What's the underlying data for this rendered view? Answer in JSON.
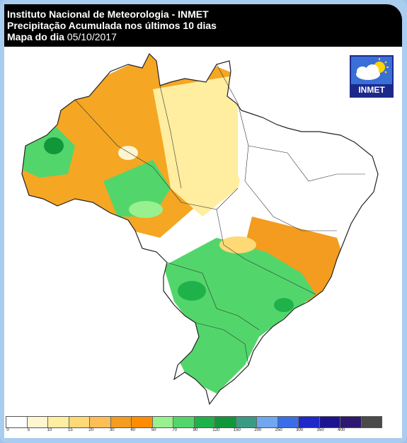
{
  "header": {
    "line1": "Instituto Nacional de Meteorologia - INMET",
    "line2": "Precipitação Acumulada nos últimos 10 dias",
    "date_label": "Mapa do dia",
    "date_value": "05/10/2017"
  },
  "logo": {
    "text": "INMET",
    "icon": "cloud-sun-icon"
  },
  "legend": {
    "labels": [
      "0",
      "5",
      "10",
      "15",
      "20",
      "30",
      "40",
      "50",
      "70",
      "90",
      "120",
      "150",
      "200",
      "250",
      "300",
      "350",
      "400"
    ],
    "colors": [
      "#ffffff",
      "#fff5cf",
      "#ffeda0",
      "#fed976",
      "#fdbf55",
      "#f39c1f",
      "#ff8c00",
      "#98f08f",
      "#52d66b",
      "#1fb24a",
      "#11973a",
      "#3a9b84",
      "#6fa7f0",
      "#3a6ee8",
      "#1f28c8",
      "#1a1490",
      "#2e1870",
      "#4a4a4a"
    ]
  },
  "map_colors": {
    "dry": "#ffffff",
    "light_yellow": "#fff5cf",
    "yellow": "#ffeda0",
    "gold": "#fed976",
    "orange": "#f5a623",
    "dark_orange": "#f39c1f",
    "light_green": "#98f08f",
    "green": "#52d66b",
    "dark_green": "#1fb24a",
    "deep_green": "#11973a"
  }
}
